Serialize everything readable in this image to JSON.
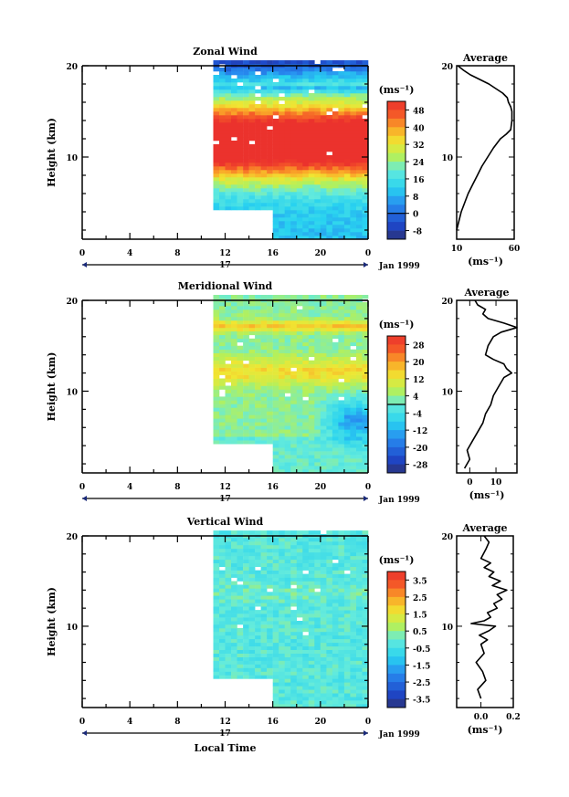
{
  "chart_data": [
    {
      "type": "heatmap",
      "title": "Zonal Wind",
      "xlabel": "",
      "ylabel": "Height (km)",
      "xticks": [
        "0",
        "4",
        "8",
        "12",
        "16",
        "20",
        "0"
      ],
      "yticks": [
        "10",
        "20"
      ],
      "xlim": [
        0,
        24
      ],
      "ylim": [
        1,
        20
      ],
      "date_label": "17",
      "month_label": "Jan 1999",
      "data_start_hour": 11,
      "data_start_hour_low": 16,
      "low_cutoff_km": 4,
      "colorbar": {
        "unit_label": "(ms⁻¹)",
        "ticks": [
          "48",
          "40",
          "32",
          "24",
          "16",
          "8",
          "0",
          "-8"
        ],
        "range": [
          -12,
          52
        ],
        "zero_line": 0
      },
      "profile": {
        "title": "Average",
        "xlabel": "(ms⁻¹)",
        "xticks": [
          "10",
          "60"
        ],
        "yticks": [
          "10",
          "20"
        ],
        "xlim": [
          10,
          60
        ],
        "x": [
          10,
          12,
          14,
          17,
          20,
          24,
          28,
          32,
          37,
          42,
          48,
          53,
          57,
          58,
          58,
          57,
          55,
          54,
          50,
          44,
          38,
          30,
          22,
          16,
          13,
          11
        ],
        "y": [
          2,
          3,
          4,
          5,
          6,
          7,
          8,
          9,
          10,
          11,
          12,
          12.5,
          13,
          14,
          15,
          15.5,
          16,
          16.5,
          17,
          17.5,
          18,
          18.5,
          19,
          19.5,
          19.8,
          20
        ]
      }
    },
    {
      "type": "heatmap",
      "title": "Meridional Wind",
      "xlabel": "",
      "ylabel": "Height (km)",
      "xticks": [
        "0",
        "4",
        "8",
        "12",
        "16",
        "20",
        "0"
      ],
      "yticks": [
        "10",
        "20"
      ],
      "xlim": [
        0,
        24
      ],
      "ylim": [
        1,
        20
      ],
      "date_label": "17",
      "month_label": "Jan 1999",
      "data_start_hour": 11,
      "data_start_hour_low": 16,
      "low_cutoff_km": 4,
      "colorbar": {
        "unit_label": "(ms⁻¹)",
        "ticks": [
          "28",
          "20",
          "12",
          "4",
          "-4",
          "-12",
          "-20",
          "-28"
        ],
        "range": [
          -30,
          30
        ],
        "zero_line": 0
      },
      "profile": {
        "title": "Average",
        "xlabel": "(ms⁻¹)",
        "xticks": [
          "0",
          "10"
        ],
        "yticks": [
          "10",
          "20"
        ],
        "xlim": [
          -5,
          18
        ],
        "x": [
          -2,
          0,
          -1,
          1,
          3,
          5,
          6,
          8,
          9,
          11,
          13,
          16,
          14,
          13,
          9,
          6,
          7,
          9,
          12,
          18,
          13,
          7,
          5,
          6,
          3,
          2
        ],
        "y": [
          1.5,
          2.5,
          3.5,
          4.5,
          5.5,
          6.5,
          7.5,
          8.5,
          9.5,
          10.5,
          11.5,
          12,
          12.5,
          13,
          13.5,
          14,
          15,
          16,
          16.5,
          17,
          17.5,
          18,
          18.5,
          19,
          19.5,
          20
        ]
      }
    },
    {
      "type": "heatmap",
      "title": "Vertical Wind",
      "xlabel": "Local Time",
      "ylabel": "Height (km)",
      "xticks": [
        "0",
        "4",
        "8",
        "12",
        "16",
        "20",
        "0"
      ],
      "yticks": [
        "10",
        "20"
      ],
      "xlim": [
        0,
        24
      ],
      "ylim": [
        1,
        20
      ],
      "date_label": "17",
      "month_label": "Jan 1999",
      "data_start_hour": 11,
      "data_start_hour_low": 16,
      "low_cutoff_km": 4,
      "colorbar": {
        "unit_label": "(ms⁻¹)",
        "ticks": [
          "3.5",
          "2.5",
          "1.5",
          "0.5",
          "-0.5",
          "-1.5",
          "-2.5",
          "-3.5"
        ],
        "range": [
          -4,
          4
        ],
        "zero_line": null
      },
      "profile": {
        "title": "Average",
        "xlabel": "(ms⁻¹)",
        "xticks": [
          "0.0",
          "0.2"
        ],
        "yticks": [
          "10",
          "20"
        ],
        "xlim": [
          -0.15,
          0.2
        ],
        "x": [
          0.0,
          -0.02,
          0.03,
          0.01,
          -0.03,
          0.02,
          0.0,
          0.04,
          -0.01,
          0.05,
          0.09,
          -0.06,
          0.02,
          0.06,
          0.04,
          0.1,
          0.08,
          0.13,
          0.1,
          0.16,
          0.07,
          0.12,
          0.05,
          0.08,
          0.02,
          0.06,
          0.0,
          0.03,
          0.05,
          0.02
        ],
        "y": [
          2,
          3,
          4,
          5,
          6,
          7,
          8,
          8.5,
          9,
          9.5,
          10,
          10.3,
          10.6,
          11,
          11.5,
          12,
          12.5,
          13,
          13.5,
          14,
          14.5,
          15,
          15.5,
          16,
          16.5,
          17,
          17.5,
          18.5,
          19.3,
          20
        ]
      }
    }
  ]
}
